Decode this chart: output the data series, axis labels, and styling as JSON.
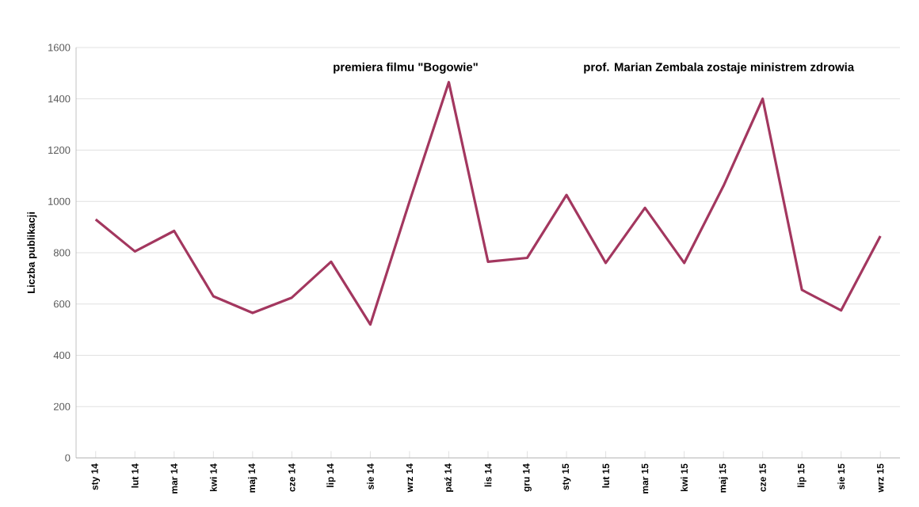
{
  "chart_data": {
    "type": "line",
    "ylabel": "Liczba publikacji",
    "categories": [
      "sty 14",
      "lut 14",
      "mar 14",
      "kwi 14",
      "maj 14",
      "cze 14",
      "lip 14",
      "sie 14",
      "wrz 14",
      "paź 14",
      "lis 14",
      "gru 14",
      "sty 15",
      "lut 15",
      "mar 15",
      "kwi 15",
      "maj 15",
      "cze 15",
      "lip 15",
      "sie 15",
      "wrz 15"
    ],
    "series": [
      {
        "color": "#a3375f",
        "values": [
          930,
          805,
          885,
          630,
          565,
          625,
          765,
          520,
          1000,
          1465,
          765,
          780,
          1025,
          760,
          975,
          760,
          1060,
          1400,
          655,
          575,
          865
        ]
      }
    ],
    "ylim": [
      0,
      1600
    ],
    "yticks": [
      0,
      200,
      400,
      600,
      800,
      1000,
      1200,
      1400,
      1600
    ],
    "grid": "y",
    "marker": "none",
    "line_style": "solid",
    "annotations": [
      "premiera filmu \"Bogowie\"",
      "prof. Marian Zembala zostaje ministrem zdrowia"
    ]
  }
}
